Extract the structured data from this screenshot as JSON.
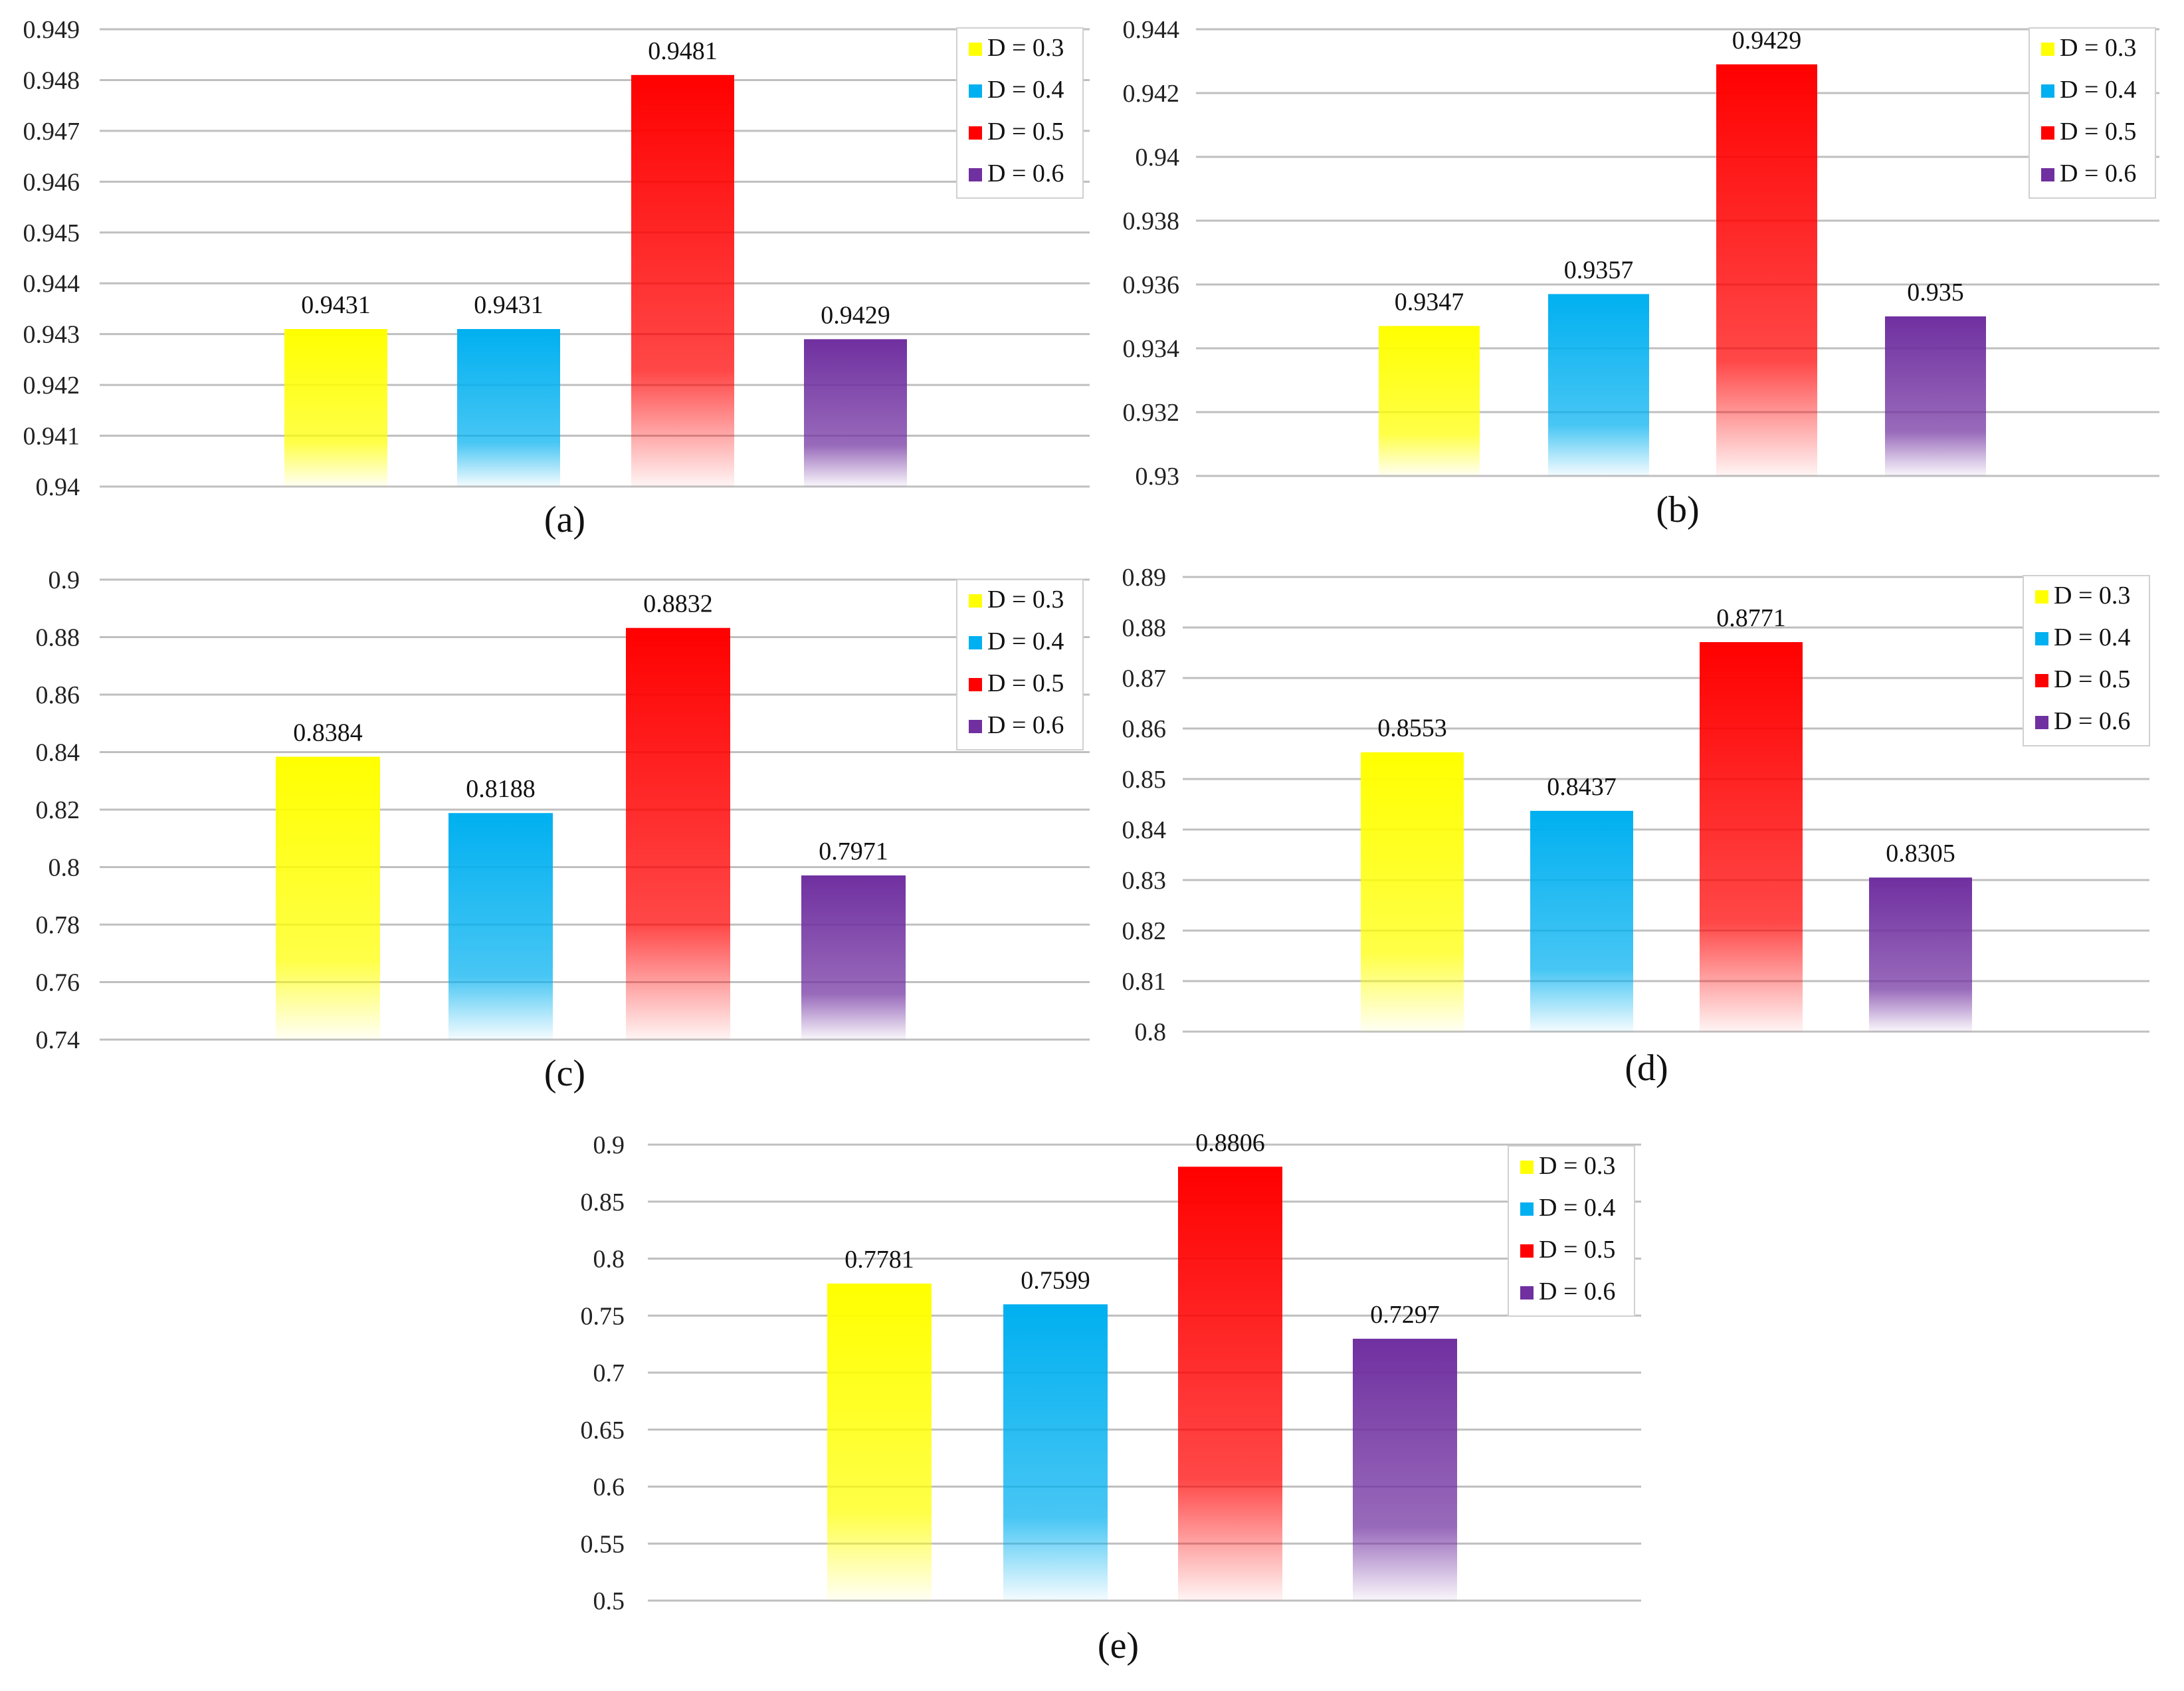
{
  "figure": {
    "legend_items": [
      "D = 0.3",
      "D = 0.4",
      "D = 0.5",
      "D = 0.6"
    ],
    "series_colors": {
      "D = 0.3": "#ffff00",
      "D = 0.4": "#00b0f0",
      "D = 0.5": "#ff0000",
      "D = 0.6": "#7030a0"
    },
    "gridline_color": "#bfbfbf"
  },
  "chart_data": [
    {
      "id": "a",
      "type": "bar",
      "caption": "(a)",
      "categories": [
        "D = 0.3",
        "D = 0.4",
        "D = 0.5",
        "D = 0.6"
      ],
      "values": [
        0.9431,
        0.9431,
        0.9481,
        0.9429
      ],
      "value_labels": [
        "0.9431",
        "0.9431",
        "0.9481",
        "0.9429"
      ],
      "ylim": [
        0.94,
        0.949
      ],
      "yticks": [
        "0.94",
        "0.941",
        "0.942",
        "0.943",
        "0.944",
        "0.945",
        "0.946",
        "0.947",
        "0.948",
        "0.949"
      ],
      "legend": [
        "D = 0.3",
        "D = 0.4",
        "D = 0.5",
        "D = 0.6"
      ],
      "legend_position": "top-right",
      "grid": true
    },
    {
      "id": "b",
      "type": "bar",
      "caption": "(b)",
      "categories": [
        "D = 0.3",
        "D = 0.4",
        "D = 0.5",
        "D = 0.6"
      ],
      "values": [
        0.9347,
        0.9357,
        0.9429,
        0.935
      ],
      "value_labels": [
        "0.9347",
        "0.9357",
        "0.9429",
        "0.935"
      ],
      "ylim": [
        0.93,
        0.944
      ],
      "yticks": [
        "0.93",
        "0.932",
        "0.934",
        "0.936",
        "0.938",
        "0.94",
        "0.942",
        "0.944"
      ],
      "legend": [
        "D = 0.3",
        "D = 0.4",
        "D = 0.5",
        "D = 0.6"
      ],
      "legend_position": "top-right",
      "grid": true
    },
    {
      "id": "c",
      "type": "bar",
      "caption": "(c)",
      "categories": [
        "D = 0.3",
        "D = 0.4",
        "D = 0.5",
        "D = 0.6"
      ],
      "values": [
        0.8384,
        0.8188,
        0.8832,
        0.7971
      ],
      "value_labels": [
        "0.8384",
        "0.8188",
        "0.8832",
        "0.7971"
      ],
      "ylim": [
        0.74,
        0.9
      ],
      "yticks": [
        "0.74",
        "0.76",
        "0.78",
        "0.8",
        "0.82",
        "0.84",
        "0.86",
        "0.88",
        "0.9"
      ],
      "legend": [
        "D = 0.3",
        "D = 0.4",
        "D = 0.5",
        "D = 0.6"
      ],
      "legend_position": "top-right",
      "grid": true
    },
    {
      "id": "d",
      "type": "bar",
      "caption": "(d)",
      "categories": [
        "D = 0.3",
        "D = 0.4",
        "D = 0.5",
        "D = 0.6"
      ],
      "values": [
        0.8553,
        0.8437,
        0.8771,
        0.8305
      ],
      "value_labels": [
        "0.8553",
        "0.8437",
        "0.8771",
        "0.8305"
      ],
      "ylim": [
        0.8,
        0.89
      ],
      "yticks": [
        "0.8",
        "0.81",
        "0.82",
        "0.83",
        "0.84",
        "0.85",
        "0.86",
        "0.87",
        "0.88",
        "0.89"
      ],
      "legend": [
        "D = 0.3",
        "D = 0.4",
        "D = 0.5",
        "D = 0.6"
      ],
      "legend_position": "top-right",
      "grid": true
    },
    {
      "id": "e",
      "type": "bar",
      "caption": "(e)",
      "categories": [
        "D = 0.3",
        "D = 0.4",
        "D = 0.5",
        "D = 0.6"
      ],
      "values": [
        0.7781,
        0.7599,
        0.8806,
        0.7297
      ],
      "value_labels": [
        "0.7781",
        "0.7599",
        "0.8806",
        "0.7297"
      ],
      "ylim": [
        0.5,
        0.9
      ],
      "yticks": [
        "0.5",
        "0.55",
        "0.6",
        "0.65",
        "0.7",
        "0.75",
        "0.8",
        "0.85",
        "0.9"
      ],
      "legend": [
        "D = 0.3",
        "D = 0.4",
        "D = 0.5",
        "D = 0.6"
      ],
      "legend_position": "top-right",
      "grid": true
    }
  ]
}
